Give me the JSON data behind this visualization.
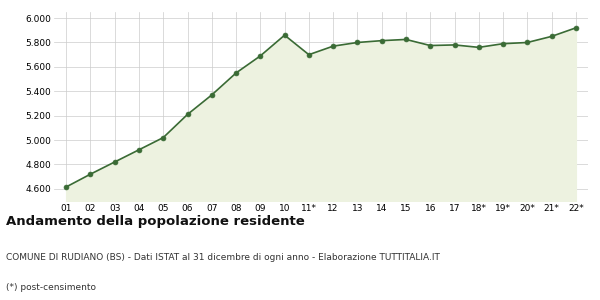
{
  "x_labels": [
    "01",
    "02",
    "03",
    "04",
    "05",
    "06",
    "07",
    "08",
    "09",
    "10",
    "11*",
    "12",
    "13",
    "14",
    "15",
    "16",
    "17",
    "18*",
    "19*",
    "20*",
    "21*",
    "22*"
  ],
  "y_values": [
    4615,
    4720,
    4820,
    4920,
    5020,
    5210,
    5370,
    5550,
    5690,
    5860,
    5700,
    5770,
    5800,
    5815,
    5825,
    5775,
    5780,
    5760,
    5790,
    5800,
    5850,
    5920
  ],
  "line_color": "#3a6b35",
  "fill_color": "#edf2e0",
  "marker_color": "#3a6b35",
  "bg_color": "#ffffff",
  "grid_color": "#cccccc",
  "ylim": [
    4500,
    6050
  ],
  "yticks": [
    4600,
    4800,
    5000,
    5200,
    5400,
    5600,
    5800,
    6000
  ],
  "title": "Andamento della popolazione residente",
  "subtitle": "COMUNE DI RUDIANO (BS) - Dati ISTAT al 31 dicembre di ogni anno - Elaborazione TUTTITALIA.IT",
  "footnote": "(*) post-censimento",
  "title_fontsize": 9.5,
  "subtitle_fontsize": 6.5,
  "footnote_fontsize": 6.5,
  "tick_fontsize": 6.5
}
